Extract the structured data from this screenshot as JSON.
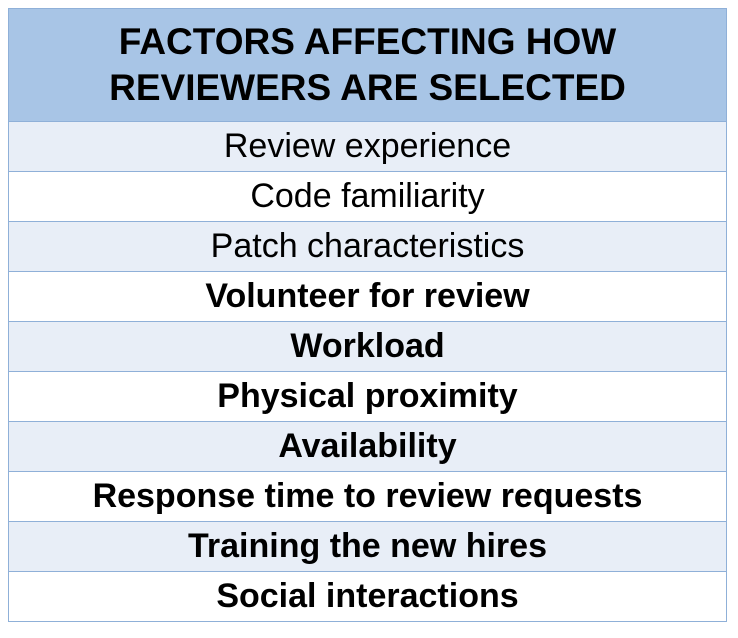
{
  "table": {
    "header_line1": "FACTORS AFFECTING HOW",
    "header_line2": "REVIEWERS ARE SELECTED",
    "rows": [
      {
        "label": "Review experience",
        "bold": false
      },
      {
        "label": "Code familiarity",
        "bold": false
      },
      {
        "label": "Patch characteristics",
        "bold": false
      },
      {
        "label": "Volunteer for review",
        "bold": true
      },
      {
        "label": "Workload",
        "bold": true
      },
      {
        "label": "Physical proximity",
        "bold": true
      },
      {
        "label": "Availability",
        "bold": true
      },
      {
        "label": "Response time to review requests",
        "bold": true
      },
      {
        "label": "Training the new hires",
        "bold": true
      },
      {
        "label": "Social interactions",
        "bold": true
      }
    ]
  },
  "colors": {
    "header_bg": "#a8c5e6",
    "band_bg": "#e8eef7",
    "border": "#8fb0d8"
  }
}
